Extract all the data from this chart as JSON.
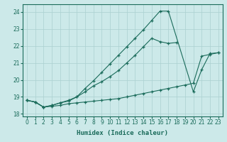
{
  "xlabel": "Humidex (Indice chaleur)",
  "xlim": [
    -0.5,
    23.5
  ],
  "ylim": [
    17.85,
    24.45
  ],
  "yticks": [
    18,
    19,
    20,
    21,
    22,
    23,
    24
  ],
  "xticks": [
    0,
    1,
    2,
    3,
    4,
    5,
    6,
    7,
    8,
    9,
    10,
    11,
    12,
    13,
    14,
    15,
    16,
    17,
    18,
    19,
    20,
    21,
    22,
    23
  ],
  "background_color": "#cce9e9",
  "line_color": "#1a6b5a",
  "grid_color": "#aad0d0",
  "line1_x": [
    0,
    1,
    2,
    3,
    4,
    5,
    6,
    7,
    8,
    9,
    10,
    11,
    12,
    13,
    14,
    15,
    16,
    17,
    20,
    21,
    22,
    23
  ],
  "line1_y": [
    18.8,
    18.7,
    18.4,
    18.5,
    18.65,
    18.75,
    19.0,
    19.5,
    19.95,
    20.45,
    20.95,
    21.45,
    21.95,
    22.45,
    22.95,
    23.5,
    24.05,
    24.05,
    19.3,
    20.6,
    21.55,
    21.6
  ],
  "line2_x": [
    0,
    1,
    2,
    3,
    4,
    5,
    6,
    7,
    8,
    9,
    10,
    11,
    12,
    13,
    14,
    15,
    16,
    17,
    18
  ],
  "line2_y": [
    18.8,
    18.7,
    18.4,
    18.5,
    18.65,
    18.8,
    19.0,
    19.3,
    19.65,
    19.9,
    20.2,
    20.55,
    21.0,
    21.45,
    21.95,
    22.45,
    22.25,
    22.15,
    22.2
  ],
  "line3_x": [
    0,
    1,
    2,
    3,
    4,
    5,
    6,
    7,
    8,
    9,
    10,
    11,
    12,
    13,
    14,
    15,
    16,
    17,
    18,
    19,
    20,
    21,
    22,
    23
  ],
  "line3_y": [
    18.8,
    18.7,
    18.4,
    18.45,
    18.5,
    18.6,
    18.65,
    18.7,
    18.75,
    18.8,
    18.85,
    18.9,
    19.0,
    19.1,
    19.2,
    19.3,
    19.4,
    19.5,
    19.6,
    19.7,
    19.8,
    21.4,
    21.5,
    21.6
  ]
}
